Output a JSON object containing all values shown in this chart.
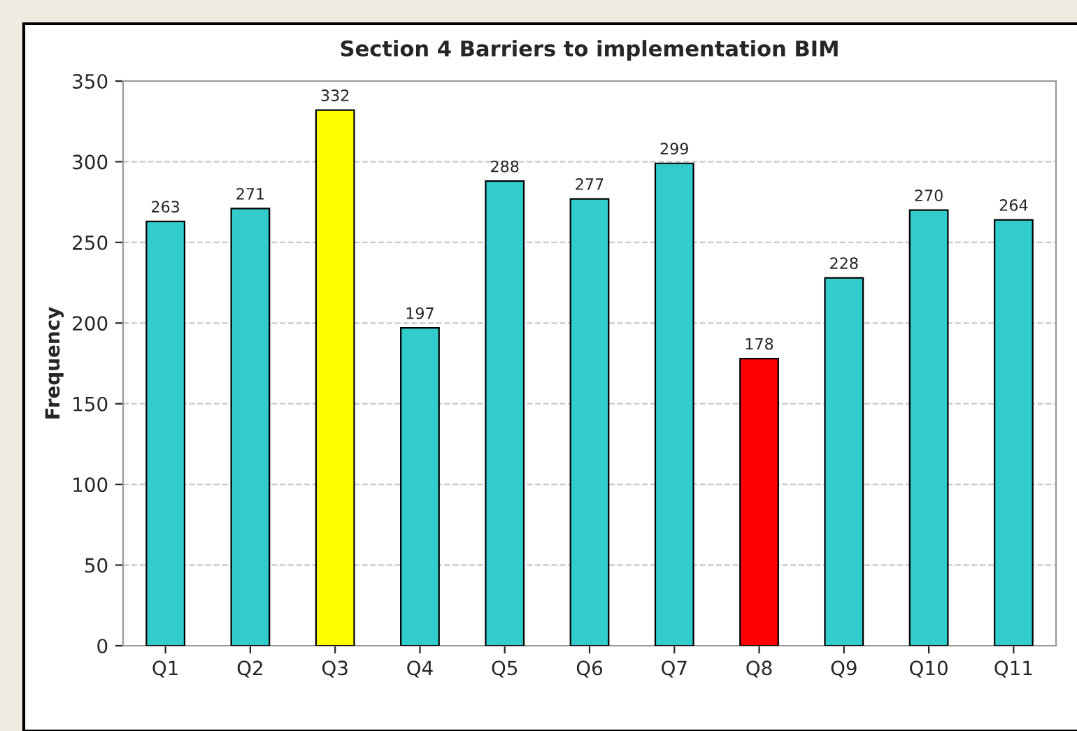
{
  "chart_data": {
    "type": "bar",
    "title": "Section 4 Barriers to implementation BIM",
    "ylabel": "Frequency",
    "categories": [
      "Q1",
      "Q2",
      "Q3",
      "Q4",
      "Q5",
      "Q6",
      "Q7",
      "Q8",
      "Q9",
      "Q10",
      "Q11"
    ],
    "values": [
      263,
      271,
      332,
      197,
      288,
      277,
      299,
      178,
      228,
      270,
      264
    ],
    "colors": [
      "#33cccc",
      "#33cccc",
      "#ffff00",
      "#33cccc",
      "#33cccc",
      "#33cccc",
      "#33cccc",
      "#ff0000",
      "#33cccc",
      "#33cccc",
      "#33cccc"
    ],
    "ylim": [
      0,
      350
    ],
    "yticks": [
      0,
      50,
      100,
      150,
      200,
      250,
      300,
      350
    ],
    "grid": "y",
    "data_labels": true
  }
}
